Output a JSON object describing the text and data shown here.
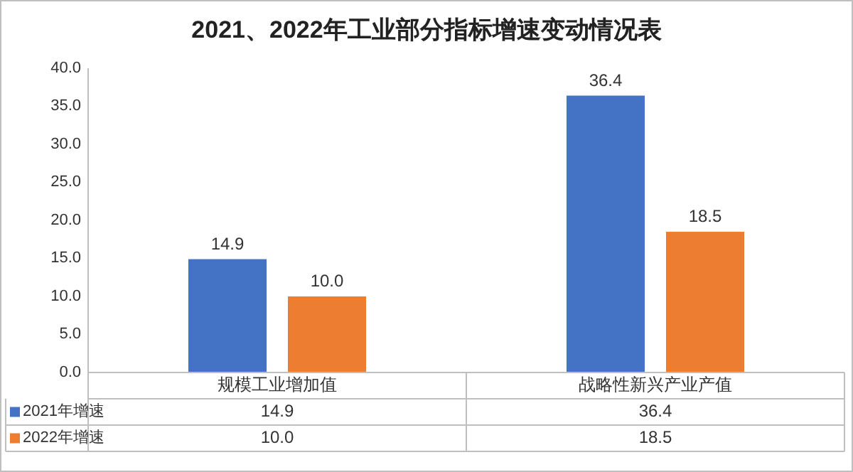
{
  "chart_data": {
    "type": "bar",
    "title": "2021、2022年工业部分指标增速变动情况表",
    "categories": [
      "规模工业增加值",
      "战略性新兴产业产值"
    ],
    "series": [
      {
        "name": "2021年增速",
        "color": "#4472c4",
        "values": [
          14.9,
          36.4
        ],
        "value_labels": [
          "14.9",
          "36.4"
        ]
      },
      {
        "name": "2022年增速",
        "color": "#ed7d31",
        "values": [
          10.0,
          18.5
        ],
        "value_labels": [
          "10.0",
          "18.5"
        ]
      }
    ],
    "ylim": [
      0,
      40
    ],
    "yticks": [
      {
        "value": 0,
        "label": "0.0"
      },
      {
        "value": 5,
        "label": "5.0"
      },
      {
        "value": 10,
        "label": "10.0"
      },
      {
        "value": 15,
        "label": "15.0"
      },
      {
        "value": 20,
        "label": "20.0"
      },
      {
        "value": 25,
        "label": "25.0"
      },
      {
        "value": 30,
        "label": "30.0"
      },
      {
        "value": 35,
        "label": "35.0"
      },
      {
        "value": 40,
        "label": "40.0"
      }
    ],
    "legend": "bottom",
    "grid": false
  }
}
